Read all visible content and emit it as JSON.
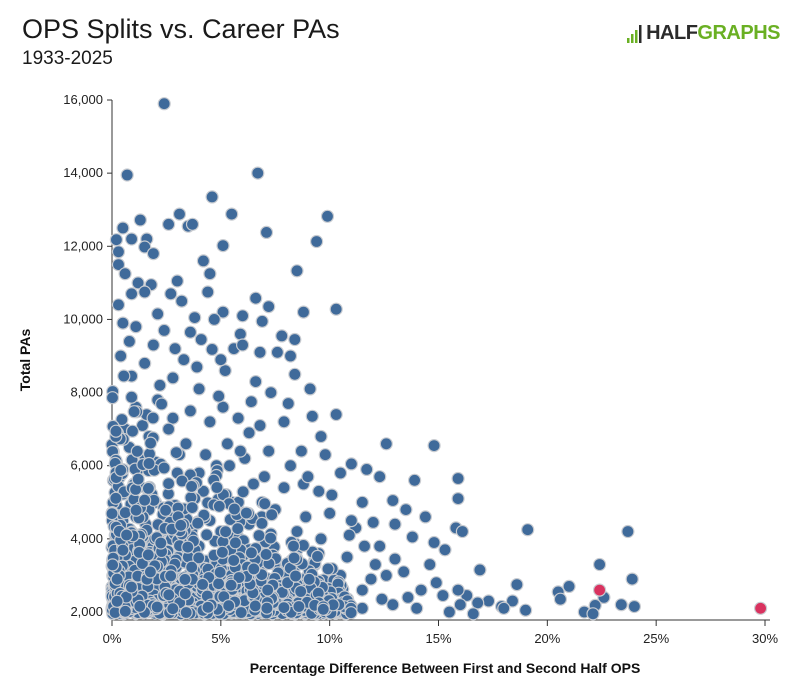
{
  "header": {
    "title": "OPS Splits vs. Career PAs",
    "subtitle": "1933-2025",
    "logo_half": "HALF",
    "logo_graphs": "GRAPHS"
  },
  "colors": {
    "point": "#3f6a9a",
    "point_stroke": "#c9ccd1",
    "highlight": "#d9325f",
    "logo_accent": "#6ab023"
  },
  "chart_data": {
    "type": "scatter",
    "xlabel": "Percentage Difference Between First and Second Half OPS",
    "ylabel": "Total PAs",
    "xlim": [
      0,
      30
    ],
    "ylim": [
      2000,
      16000
    ],
    "x_ticks": [
      0,
      5,
      10,
      15,
      20,
      25,
      30
    ],
    "x_tick_labels": [
      "0%",
      "5%",
      "10%",
      "15%",
      "20%",
      "25%",
      "30%"
    ],
    "y_ticks": [
      2000,
      4000,
      6000,
      8000,
      10000,
      12000,
      14000,
      16000
    ],
    "y_tick_labels": [
      "2,000",
      "4,000",
      "6,000",
      "8,000",
      "10,000",
      "12,000",
      "14,000",
      "16,000"
    ],
    "grid": false,
    "points": [
      [
        2.4,
        15900
      ],
      [
        0.7,
        13950
      ],
      [
        6.7,
        14000
      ],
      [
        4.6,
        13350
      ],
      [
        3.1,
        12880
      ],
      [
        5.5,
        12880
      ],
      [
        9.9,
        12820
      ],
      [
        1.3,
        12720
      ],
      [
        2.6,
        12600
      ],
      [
        3.5,
        12550
      ],
      [
        3.7,
        12600
      ],
      [
        7.1,
        12380
      ],
      [
        0.5,
        12500
      ],
      [
        1.6,
        12200
      ],
      [
        0.9,
        12200
      ],
      [
        9.4,
        12130
      ],
      [
        5.1,
        12020
      ],
      [
        0.2,
        12180
      ],
      [
        1.5,
        11980
      ],
      [
        0.3,
        11850
      ],
      [
        4.2,
        11600
      ],
      [
        1.9,
        11800
      ],
      [
        0.3,
        11500
      ],
      [
        4.5,
        11250
      ],
      [
        8.5,
        11330
      ],
      [
        0.6,
        11250
      ],
      [
        1.2,
        11000
      ],
      [
        1.8,
        10950
      ],
      [
        3.0,
        11050
      ],
      [
        2.7,
        10700
      ],
      [
        4.4,
        10750
      ],
      [
        0.9,
        10700
      ],
      [
        1.5,
        10750
      ],
      [
        0.3,
        10400
      ],
      [
        6.6,
        10580
      ],
      [
        3.2,
        10500
      ],
      [
        5.1,
        10200
      ],
      [
        7.2,
        10350
      ],
      [
        10.3,
        10280
      ],
      [
        8.8,
        10200
      ],
      [
        2.1,
        10150
      ],
      [
        6.0,
        10100
      ],
      [
        3.8,
        10050
      ],
      [
        0.5,
        9900
      ],
      [
        4.7,
        10000
      ],
      [
        6.9,
        9950
      ],
      [
        1.1,
        9800
      ],
      [
        2.4,
        9700
      ],
      [
        3.6,
        9650
      ],
      [
        5.9,
        9600
      ],
      [
        7.8,
        9550
      ],
      [
        4.1,
        9450
      ],
      [
        8.4,
        9450
      ],
      [
        0.8,
        9400
      ],
      [
        1.9,
        9300
      ],
      [
        2.9,
        9200
      ],
      [
        4.6,
        9180
      ],
      [
        5.6,
        9200
      ],
      [
        6.8,
        9100
      ],
      [
        0.4,
        9000
      ],
      [
        7.6,
        9100
      ],
      [
        8.2,
        9000
      ],
      [
        3.3,
        8900
      ],
      [
        1.5,
        8800
      ],
      [
        5.2,
        8600
      ],
      [
        6.6,
        8300
      ],
      [
        8.4,
        8500
      ],
      [
        9.1,
        8100
      ],
      [
        0.9,
        8450
      ],
      [
        2.2,
        8200
      ],
      [
        4.0,
        8100
      ],
      [
        7.3,
        8000
      ],
      [
        10.3,
        7400
      ],
      [
        9.2,
        7350
      ],
      [
        6.4,
        7750
      ],
      [
        5.1,
        7600
      ],
      [
        8.1,
        7700
      ],
      [
        3.6,
        7500
      ],
      [
        2.8,
        7300
      ],
      [
        1.4,
        7100
      ],
      [
        0.6,
        7000
      ],
      [
        4.5,
        7200
      ],
      [
        7.9,
        7200
      ],
      [
        9.6,
        6800
      ],
      [
        12.6,
        6600
      ],
      [
        14.8,
        6550
      ],
      [
        11.0,
        6050
      ],
      [
        11.7,
        5900
      ],
      [
        12.3,
        5700
      ],
      [
        13.9,
        5600
      ],
      [
        15.9,
        5650
      ],
      [
        8.7,
        6400
      ],
      [
        9.8,
        6300
      ],
      [
        6.1,
        6200
      ],
      [
        5.4,
        6000
      ],
      [
        10.5,
        5800
      ],
      [
        7.0,
        5700
      ],
      [
        3.1,
        6300
      ],
      [
        2.0,
        6100
      ],
      [
        0.2,
        6100
      ],
      [
        1.2,
        5900
      ],
      [
        4.0,
        5800
      ],
      [
        12.9,
        5050
      ],
      [
        15.9,
        5100
      ],
      [
        11.5,
        5000
      ],
      [
        10.1,
        5200
      ],
      [
        8.8,
        5500
      ],
      [
        9.5,
        5300
      ],
      [
        14.4,
        4600
      ],
      [
        13.0,
        4400
      ],
      [
        12.0,
        4450
      ],
      [
        11.2,
        4300
      ],
      [
        15.8,
        4300
      ],
      [
        16.1,
        4200
      ],
      [
        19.1,
        4250
      ],
      [
        23.7,
        4200
      ],
      [
        13.8,
        4050
      ],
      [
        14.8,
        3900
      ],
      [
        10.9,
        4100
      ],
      [
        9.6,
        4000
      ],
      [
        12.3,
        3800
      ],
      [
        15.3,
        3700
      ],
      [
        13.0,
        3450
      ],
      [
        14.6,
        3300
      ],
      [
        16.9,
        3150
      ],
      [
        22.4,
        3300
      ],
      [
        23.9,
        2900
      ],
      [
        18.6,
        2750
      ],
      [
        21.0,
        2700
      ],
      [
        20.5,
        2550
      ],
      [
        22.6,
        2400
      ],
      [
        23.4,
        2200
      ],
      [
        24.0,
        2150
      ],
      [
        22.2,
        2180
      ],
      [
        21.7,
        2000
      ],
      [
        20.6,
        2350
      ],
      [
        18.4,
        2300
      ],
      [
        17.9,
        2150
      ],
      [
        17.3,
        2300
      ],
      [
        16.8,
        2250
      ],
      [
        16.3,
        2450
      ],
      [
        15.9,
        2600
      ],
      [
        16.0,
        2200
      ],
      [
        15.2,
        2450
      ],
      [
        14.9,
        2800
      ],
      [
        14.2,
        2600
      ],
      [
        13.6,
        2400
      ],
      [
        14.0,
        2100
      ],
      [
        12.4,
        2350
      ],
      [
        12.9,
        2200
      ],
      [
        11.5,
        2100
      ],
      [
        10.6,
        2500
      ],
      [
        9.7,
        2300
      ],
      [
        11.9,
        2900
      ],
      [
        12.6,
        3000
      ],
      [
        13.4,
        3100
      ],
      [
        18.0,
        2100
      ],
      [
        19.0,
        2050
      ],
      [
        15.5,
        2000
      ],
      [
        16.6,
        1950
      ],
      [
        22.1,
        1950
      ],
      [
        1.5,
        3000
      ],
      [
        2.5,
        3500
      ],
      [
        3.5,
        4000
      ],
      [
        4.5,
        4500
      ],
      [
        5.5,
        5000
      ],
      [
        6.5,
        5500
      ],
      [
        7.5,
        4800
      ],
      [
        8.5,
        4200
      ],
      [
        9.5,
        3600
      ],
      [
        10.5,
        3000
      ],
      [
        11.5,
        2600
      ],
      [
        1.0,
        5500
      ],
      [
        2.0,
        5000
      ],
      [
        3.0,
        4600
      ],
      [
        4.0,
        3800
      ],
      [
        5.0,
        3400
      ],
      [
        6.0,
        3000
      ],
      [
        7.0,
        2700
      ],
      [
        8.0,
        2500
      ],
      [
        9.0,
        2300
      ],
      [
        10.0,
        2100
      ],
      [
        0.5,
        4500
      ],
      [
        0.5,
        3500
      ],
      [
        0.5,
        2500
      ],
      [
        1.5,
        4000
      ],
      [
        2.5,
        2500
      ],
      [
        3.5,
        3000
      ],
      [
        4.5,
        2500
      ],
      [
        5.5,
        2200
      ],
      [
        6.5,
        2400
      ],
      [
        7.5,
        3300
      ],
      [
        8.5,
        3700
      ],
      [
        9.2,
        2800
      ],
      [
        10.8,
        3500
      ],
      [
        11.6,
        3800
      ],
      [
        12.1,
        3300
      ],
      [
        0.3,
        2200
      ],
      [
        1.2,
        2400
      ],
      [
        2.3,
        2100
      ],
      [
        3.7,
        2300
      ],
      [
        4.8,
        2050
      ],
      [
        6.1,
        2150
      ],
      [
        7.3,
        2050
      ],
      [
        8.6,
        2200
      ],
      [
        0.2,
        3100
      ],
      [
        0.2,
        4000
      ],
      [
        0.2,
        4900
      ],
      [
        0.8,
        6500
      ],
      [
        1.7,
        6800
      ],
      [
        2.6,
        7000
      ],
      [
        3.4,
        6600
      ],
      [
        4.3,
        6300
      ],
      [
        5.3,
        6600
      ],
      [
        6.3,
        6900
      ],
      [
        7.2,
        6400
      ],
      [
        8.2,
        6000
      ],
      [
        9.0,
        5700
      ],
      [
        10.0,
        4700
      ],
      [
        11.0,
        4500
      ],
      [
        13.5,
        4800
      ],
      [
        2.8,
        8400
      ],
      [
        3.9,
        8700
      ],
      [
        5.0,
        8900
      ],
      [
        6.0,
        9300
      ],
      [
        1.1,
        7600
      ],
      [
        2.1,
        7800
      ],
      [
        4.9,
        7900
      ],
      [
        5.8,
        7300
      ],
      [
        6.8,
        7100
      ],
      [
        3.0,
        5800
      ],
      [
        4.2,
        5300
      ],
      [
        5.2,
        4200
      ],
      [
        6.3,
        4400
      ],
      [
        7.0,
        3900
      ],
      [
        8.0,
        3300
      ],
      [
        1.7,
        4800
      ],
      [
        2.7,
        4300
      ],
      [
        3.8,
        5100
      ],
      [
        4.8,
        6000
      ],
      [
        5.9,
        6400
      ],
      [
        6.9,
        5000
      ],
      [
        7.9,
        5400
      ],
      [
        8.9,
        4600
      ]
    ],
    "highlight_points": [
      [
        22.4,
        2600
      ],
      [
        29.8,
        2100
      ]
    ]
  }
}
